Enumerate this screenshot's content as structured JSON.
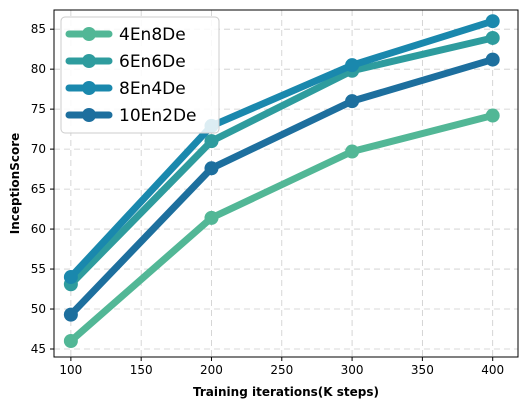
{
  "chart_data": {
    "type": "line",
    "title": "",
    "xlabel": "Training iterations(K steps)",
    "ylabel": "InceptionScore",
    "x": [
      100,
      200,
      300,
      400
    ],
    "xlim": [
      88,
      418
    ],
    "ylim": [
      44,
      87.4
    ],
    "xticks": [
      100,
      150,
      200,
      250,
      300,
      350,
      400
    ],
    "yticks": [
      45,
      50,
      55,
      60,
      65,
      70,
      75,
      80,
      85
    ],
    "grid": true,
    "grid_style": "dashed",
    "legend_position": "top-left",
    "series": [
      {
        "name": "4En8De",
        "color": "#52b796",
        "values": [
          46.0,
          61.4,
          69.7,
          74.2
        ]
      },
      {
        "name": "6En6De",
        "color": "#2e9c9e",
        "values": [
          53.1,
          71.0,
          79.8,
          83.9
        ]
      },
      {
        "name": "8En4De",
        "color": "#1a88ad",
        "values": [
          54.0,
          72.9,
          80.5,
          86.0
        ]
      },
      {
        "name": "10En2De",
        "color": "#1d6f9e",
        "values": [
          49.3,
          67.6,
          76.0,
          81.2
        ]
      }
    ]
  }
}
